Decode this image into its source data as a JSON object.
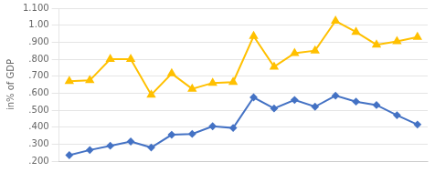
{
  "chart_data": {
    "type": "line",
    "categories": [
      null,
      null,
      null,
      null,
      null,
      null,
      null,
      null,
      null,
      null,
      null,
      null,
      null,
      null,
      null,
      null,
      null,
      null
    ],
    "series": [
      {
        "color": "#FFC000",
        "marker": "triangle",
        "values": [
          0.67,
          0.675,
          0.8,
          0.8,
          0.59,
          0.715,
          0.625,
          0.66,
          0.665,
          0.935,
          0.755,
          0.835,
          0.85,
          1.025,
          0.96,
          0.885,
          0.905,
          0.93
        ]
      },
      {
        "color": "#4472C4",
        "marker": "diamond",
        "values": [
          0.235,
          0.265,
          0.29,
          0.315,
          0.28,
          0.355,
          0.36,
          0.405,
          0.395,
          0.575,
          0.51,
          0.56,
          0.52,
          0.585,
          0.55,
          0.53,
          0.47,
          0.415
        ]
      }
    ],
    "y_label": "in% of GDP",
    "ylim": [
      0.2,
      1.1
    ],
    "yticks": [
      {
        "value": 0.2,
        "label": ".200"
      },
      {
        "value": 0.3,
        "label": ".300"
      },
      {
        "value": 0.4,
        "label": ".400"
      },
      {
        "value": 0.5,
        "label": ".500"
      },
      {
        "value": 0.6,
        "label": ".600"
      },
      {
        "value": 0.7,
        "label": ".700"
      },
      {
        "value": 0.8,
        "label": ".800"
      },
      {
        "value": 0.9,
        "label": ".900"
      },
      {
        "value": 1.0,
        "label": "1.00"
      },
      {
        "value": 1.1,
        "label": "1.100"
      }
    ],
    "grid": true,
    "tick_labels": "y"
  }
}
